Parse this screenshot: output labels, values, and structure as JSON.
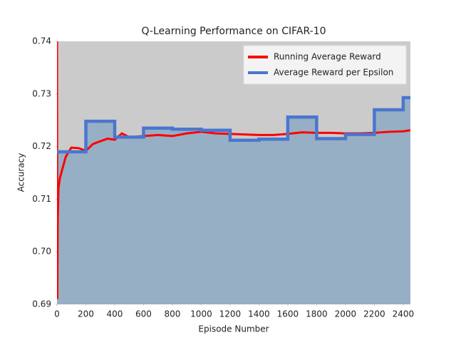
{
  "chart_data": {
    "type": "line",
    "title": "Q-Learning Performance on CIFAR-10",
    "x_label": "Episode Number",
    "y_label": "Accuracy",
    "xlim": [
      0,
      2450
    ],
    "ylim": [
      0.69,
      0.74
    ],
    "xticks": [
      0,
      200,
      400,
      600,
      800,
      1000,
      1200,
      1400,
      1600,
      1800,
      2000,
      2200,
      2400
    ],
    "yticks": [
      0.69,
      {
        "value": 0.7,
        "label": "0.70"
      },
      0.71,
      0.72,
      0.73,
      0.74
    ],
    "grid": false,
    "legend": "upper right",
    "series": [
      {
        "name": "Running Average Reward",
        "color": "#ff0000",
        "style": "line",
        "x": [
          0,
          2,
          5,
          10,
          20,
          30,
          40,
          50,
          60,
          80,
          100,
          150,
          200,
          250,
          300,
          350,
          400,
          450,
          500,
          600,
          700,
          800,
          900,
          1000,
          1100,
          1200,
          1300,
          1400,
          1500,
          1600,
          1700,
          1800,
          1900,
          2000,
          2100,
          2200,
          2300,
          2400,
          2450
        ],
        "values": [
          0.74,
          0.691,
          0.706,
          0.712,
          0.714,
          0.715,
          0.716,
          0.717,
          0.718,
          0.719,
          0.7198,
          0.7197,
          0.7192,
          0.7205,
          0.721,
          0.7215,
          0.7213,
          0.7225,
          0.7218,
          0.722,
          0.7222,
          0.722,
          0.7225,
          0.7228,
          0.7225,
          0.7224,
          0.7223,
          0.7222,
          0.7222,
          0.7224,
          0.7227,
          0.7226,
          0.7226,
          0.7225,
          0.7225,
          0.7226,
          0.7228,
          0.7229,
          0.7231
        ]
      },
      {
        "name": "Average Reward per Epsilon",
        "color": "#4a76cf",
        "style": "step",
        "x": [
          0,
          200,
          400,
          600,
          800,
          1000,
          1200,
          1400,
          1600,
          1800,
          2000,
          2200,
          2400
        ],
        "values": [
          0.719,
          0.7248,
          0.7218,
          0.7235,
          0.7233,
          0.7231,
          0.7212,
          0.7214,
          0.7256,
          0.7215,
          0.7223,
          0.727,
          0.7293
        ]
      }
    ]
  }
}
